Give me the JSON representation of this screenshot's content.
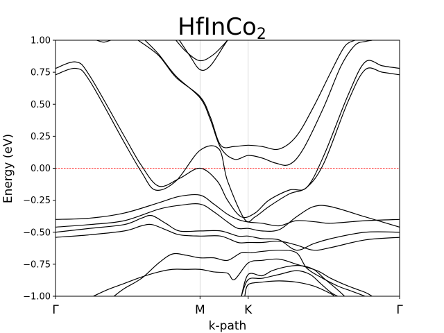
{
  "chart_data": {
    "type": "line",
    "title": "HfInCo",
    "title_subscript": "2",
    "xlabel": "k-path",
    "ylabel": "Energy (eV)",
    "ylim": [
      -1.0,
      1.0
    ],
    "yticks": [
      -1.0,
      -0.75,
      -0.5,
      -0.25,
      0.0,
      0.25,
      0.5,
      0.75,
      1.0
    ],
    "ytick_labels": [
      "−1.00",
      "−0.75",
      "−0.50",
      "−0.25",
      "0.00",
      "0.25",
      "0.50",
      "0.75",
      "1.00"
    ],
    "xlim": [
      0,
      1
    ],
    "kpoints": [
      {
        "label": "Γ",
        "x": 0
      },
      {
        "label": "M",
        "x": 0.42
      },
      {
        "label": "K",
        "x": 0.56
      },
      {
        "label": "Γ",
        "x": 1
      }
    ],
    "fermi_level": 0.0,
    "fermi_color": "#ff0000",
    "band_color": "#000000",
    "grid": "vertical lines at high-symmetry points",
    "bands": [
      {
        "points": [
          [
            0,
            0.78
          ],
          [
            0.06,
            0.83
          ],
          [
            0.1,
            0.72
          ],
          [
            0.2,
            0.25
          ],
          [
            0.25,
            0.02
          ],
          [
            0.3,
            -0.14
          ],
          [
            0.36,
            -0.08
          ],
          [
            0.42,
            0.0
          ],
          [
            0.47,
            -0.1
          ],
          [
            0.5,
            -0.25
          ],
          [
            0.54,
            -0.38
          ],
          [
            0.58,
            -0.35
          ],
          [
            0.62,
            -0.25
          ],
          [
            0.68,
            -0.17
          ],
          [
            0.73,
            -0.15
          ],
          [
            0.78,
            0.1
          ],
          [
            0.85,
            0.57
          ],
          [
            0.9,
            0.83
          ],
          [
            0.95,
            0.8
          ],
          [
            1,
            0.78
          ]
        ]
      },
      {
        "points": [
          [
            0,
            0.73
          ],
          [
            0.06,
            0.78
          ],
          [
            0.1,
            0.68
          ],
          [
            0.2,
            0.2
          ],
          [
            0.25,
            -0.03
          ],
          [
            0.29,
            -0.17
          ],
          [
            0.35,
            -0.1
          ],
          [
            0.42,
            0.14
          ],
          [
            0.475,
            0.15
          ],
          [
            0.5,
            -0.1
          ],
          [
            0.55,
            -0.4
          ],
          [
            0.58,
            -0.38
          ],
          [
            0.62,
            -0.3
          ],
          [
            0.68,
            -0.2
          ],
          [
            0.73,
            -0.15
          ],
          [
            0.78,
            0.04
          ],
          [
            0.85,
            0.52
          ],
          [
            0.9,
            0.77
          ],
          [
            0.95,
            0.75
          ],
          [
            1,
            0.73
          ]
        ]
      },
      {
        "points": [
          [
            0.24,
            1.0
          ],
          [
            0.3,
            0.88
          ],
          [
            0.35,
            0.71
          ],
          [
            0.42,
            0.56
          ],
          [
            0.45,
            0.4
          ],
          [
            0.48,
            0.18
          ],
          [
            0.52,
            0.17
          ],
          [
            0.56,
            0.18
          ],
          [
            0.6,
            0.17
          ],
          [
            0.65,
            0.15
          ],
          [
            0.7,
            0.25
          ],
          [
            0.75,
            0.48
          ],
          [
            0.8,
            0.75
          ],
          [
            0.84,
            0.95
          ],
          [
            0.87,
            1.0
          ]
        ]
      },
      {
        "points": [
          [
            0.26,
            1.0
          ],
          [
            0.3,
            0.89
          ],
          [
            0.35,
            0.72
          ],
          [
            0.42,
            0.55
          ],
          [
            0.45,
            0.38
          ],
          [
            0.48,
            0.16
          ],
          [
            0.52,
            0.07
          ],
          [
            0.56,
            0.1
          ],
          [
            0.6,
            0.08
          ],
          [
            0.64,
            0.04
          ],
          [
            0.68,
            0.03
          ],
          [
            0.72,
            0.15
          ],
          [
            0.78,
            0.48
          ],
          [
            0.83,
            0.8
          ],
          [
            0.87,
            0.96
          ],
          [
            0.9,
            0.99
          ],
          [
            0.92,
            1.0
          ]
        ]
      },
      {
        "points": [
          [
            0.35,
            1.0
          ],
          [
            0.38,
            0.91
          ],
          [
            0.42,
            0.84
          ],
          [
            0.46,
            0.89
          ],
          [
            0.5,
            1.0
          ]
        ]
      },
      {
        "points": [
          [
            0.36,
            1.0
          ],
          [
            0.39,
            0.88
          ],
          [
            0.42,
            0.77
          ],
          [
            0.45,
            0.8
          ],
          [
            0.49,
            0.96
          ],
          [
            0.5,
            1.0
          ]
        ]
      },
      {
        "points": [
          [
            0.12,
            1.0
          ],
          [
            0.14,
            0.985
          ],
          [
            0.16,
            1.0
          ]
        ]
      },
      {
        "points": [
          [
            0,
            -0.4
          ],
          [
            0.1,
            -0.39
          ],
          [
            0.2,
            -0.35
          ],
          [
            0.3,
            -0.27
          ],
          [
            0.36,
            -0.22
          ],
          [
            0.42,
            -0.21
          ],
          [
            0.46,
            -0.28
          ],
          [
            0.5,
            -0.36
          ],
          [
            0.53,
            -0.4
          ],
          [
            0.56,
            -0.42
          ],
          [
            0.6,
            -0.43
          ],
          [
            0.65,
            -0.45
          ],
          [
            0.7,
            -0.41
          ],
          [
            0.76,
            -0.42
          ],
          [
            0.8,
            -0.43
          ],
          [
            0.9,
            -0.41
          ],
          [
            1,
            -0.4
          ]
        ]
      },
      {
        "points": [
          [
            0,
            -0.46
          ],
          [
            0.1,
            -0.44
          ],
          [
            0.2,
            -0.41
          ],
          [
            0.3,
            -0.32
          ],
          [
            0.36,
            -0.29
          ],
          [
            0.42,
            -0.28
          ],
          [
            0.46,
            -0.34
          ],
          [
            0.5,
            -0.42
          ],
          [
            0.53,
            -0.47
          ],
          [
            0.56,
            -0.47
          ],
          [
            0.6,
            -0.49
          ],
          [
            0.65,
            -0.48
          ],
          [
            0.7,
            -0.38
          ],
          [
            0.75,
            -0.3
          ],
          [
            0.8,
            -0.3
          ],
          [
            0.9,
            -0.38
          ],
          [
            1,
            -0.46
          ]
        ]
      },
      {
        "points": [
          [
            0,
            -0.5
          ],
          [
            0.1,
            -0.47
          ],
          [
            0.2,
            -0.44
          ],
          [
            0.25,
            -0.39
          ],
          [
            0.28,
            -0.37
          ],
          [
            0.32,
            -0.43
          ],
          [
            0.36,
            -0.49
          ],
          [
            0.42,
            -0.49
          ],
          [
            0.48,
            -0.49
          ],
          [
            0.53,
            -0.53
          ],
          [
            0.56,
            -0.53
          ],
          [
            0.6,
            -0.55
          ],
          [
            0.65,
            -0.56
          ],
          [
            0.7,
            -0.64
          ],
          [
            0.75,
            -0.59
          ],
          [
            0.8,
            -0.55
          ],
          [
            0.9,
            -0.5
          ],
          [
            1,
            -0.5
          ]
        ]
      },
      {
        "points": [
          [
            0,
            -0.54
          ],
          [
            0.1,
            -0.52
          ],
          [
            0.2,
            -0.49
          ],
          [
            0.25,
            -0.45
          ],
          [
            0.28,
            -0.44
          ],
          [
            0.32,
            -0.48
          ],
          [
            0.36,
            -0.52
          ],
          [
            0.42,
            -0.53
          ],
          [
            0.48,
            -0.53
          ],
          [
            0.53,
            -0.58
          ],
          [
            0.56,
            -0.58
          ],
          [
            0.6,
            -0.58
          ],
          [
            0.65,
            -0.57
          ],
          [
            0.7,
            -0.6
          ],
          [
            0.75,
            -0.64
          ],
          [
            0.8,
            -0.62
          ],
          [
            0.9,
            -0.56
          ],
          [
            1,
            -0.54
          ]
        ]
      },
      {
        "points": [
          [
            0.17,
            -1.0
          ],
          [
            0.2,
            -0.94
          ],
          [
            0.25,
            -0.86
          ],
          [
            0.3,
            -0.74
          ],
          [
            0.34,
            -0.67
          ],
          [
            0.38,
            -0.68
          ],
          [
            0.42,
            -0.7
          ],
          [
            0.46,
            -0.7
          ],
          [
            0.5,
            -0.72
          ],
          [
            0.54,
            -0.66
          ],
          [
            0.57,
            -0.66
          ],
          [
            0.6,
            -0.65
          ],
          [
            0.65,
            -0.64
          ],
          [
            0.7,
            -0.66
          ],
          [
            0.73,
            -0.78
          ],
          [
            0.77,
            -0.85
          ],
          [
            0.82,
            -0.92
          ],
          [
            0.86,
            -0.96
          ],
          [
            0.9,
            -1.0
          ]
        ]
      },
      {
        "points": [
          [
            0.11,
            -1.0
          ],
          [
            0.15,
            -0.95
          ],
          [
            0.2,
            -0.9
          ],
          [
            0.25,
            -0.85
          ],
          [
            0.3,
            -0.81
          ],
          [
            0.34,
            -0.79
          ],
          [
            0.38,
            -0.79
          ],
          [
            0.42,
            -0.79
          ],
          [
            0.46,
            -0.81
          ],
          [
            0.5,
            -0.82
          ],
          [
            0.52,
            -0.87
          ],
          [
            0.56,
            -0.74
          ],
          [
            0.6,
            -0.72
          ],
          [
            0.65,
            -0.71
          ],
          [
            0.7,
            -0.75
          ],
          [
            0.76,
            -0.8
          ],
          [
            0.8,
            -0.86
          ],
          [
            0.85,
            -0.92
          ],
          [
            0.9,
            -0.97
          ],
          [
            0.92,
            -1.0
          ]
        ]
      },
      {
        "points": [
          [
            0.55,
            -1.0
          ],
          [
            0.56,
            -0.91
          ],
          [
            0.6,
            -0.89
          ],
          [
            0.65,
            -0.88
          ],
          [
            0.7,
            -0.89
          ],
          [
            0.75,
            -0.92
          ],
          [
            0.8,
            -0.98
          ],
          [
            0.81,
            -1.0
          ]
        ]
      },
      {
        "points": [
          [
            0.54,
            -1.0
          ],
          [
            0.56,
            -0.83
          ],
          [
            0.6,
            -0.84
          ],
          [
            0.63,
            -0.8
          ],
          [
            0.67,
            -0.77
          ],
          [
            0.71,
            -0.76
          ],
          [
            0.75,
            -0.79
          ],
          [
            0.78,
            -0.86
          ],
          [
            0.82,
            -0.95
          ],
          [
            0.84,
            -1.0
          ]
        ]
      },
      {
        "points": [
          [
            0.54,
            -1.0
          ],
          [
            0.56,
            -0.87
          ],
          [
            0.6,
            -0.86
          ],
          [
            0.65,
            -0.83
          ],
          [
            0.7,
            -0.8
          ],
          [
            0.74,
            -0.83
          ],
          [
            0.77,
            -0.9
          ],
          [
            0.8,
            -0.97
          ],
          [
            0.82,
            -1.0
          ]
        ]
      }
    ]
  }
}
